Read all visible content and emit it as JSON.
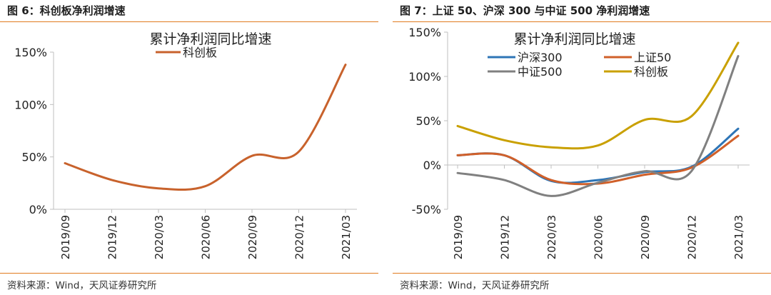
{
  "left": {
    "figure_title": "图 6：科创板净利润增速",
    "source": "资料来源：Wind，天风证券研究所"
  },
  "right": {
    "figure_title": "图 7：上证 50、沪深 300 与中证 500 净利润增速",
    "source": "资料来源：Wind，天风证券研究所"
  },
  "chart_data": [
    {
      "type": "line",
      "title": "累计净利润同比增速",
      "categories": [
        "2019/09",
        "2019/12",
        "2020/03",
        "2020/06",
        "2020/09",
        "2020/12",
        "2021/03"
      ],
      "ylim": [
        0,
        150
      ],
      "yticks": [
        0,
        50,
        100,
        150
      ],
      "ytick_labels": [
        "0%",
        "50%",
        "100%",
        "150%"
      ],
      "legend": "top-center",
      "grid": false,
      "series": [
        {
          "name": "科创板",
          "color": "#c8622c",
          "values": [
            44,
            28,
            20,
            22,
            51,
            55,
            138
          ]
        }
      ]
    },
    {
      "type": "line",
      "title": "累计净利润同比增速",
      "categories": [
        "2019/09",
        "2019/12",
        "2020/03",
        "2020/06",
        "2020/09",
        "2020/12",
        "2021/03"
      ],
      "ylim": [
        -50,
        150
      ],
      "yticks": [
        -50,
        0,
        50,
        100,
        150
      ],
      "ytick_labels": [
        "-50%",
        "0%",
        "50%",
        "100%",
        "150%"
      ],
      "legend": "top-left",
      "grid": false,
      "series": [
        {
          "name": "沪深300",
          "color": "#2e75b6",
          "values": [
            11,
            11,
            -18,
            -17,
            -8,
            -2,
            41
          ]
        },
        {
          "name": "上证50",
          "color": "#d0602a",
          "values": [
            11,
            11,
            -17,
            -21,
            -11,
            -3,
            33
          ]
        },
        {
          "name": "中证500",
          "color": "#808080",
          "values": [
            -9,
            -17,
            -35,
            -20,
            -7,
            -7,
            123
          ]
        },
        {
          "name": "科创板",
          "color": "#c9a000",
          "values": [
            44,
            28,
            20,
            22,
            51,
            55,
            138
          ]
        }
      ]
    }
  ]
}
